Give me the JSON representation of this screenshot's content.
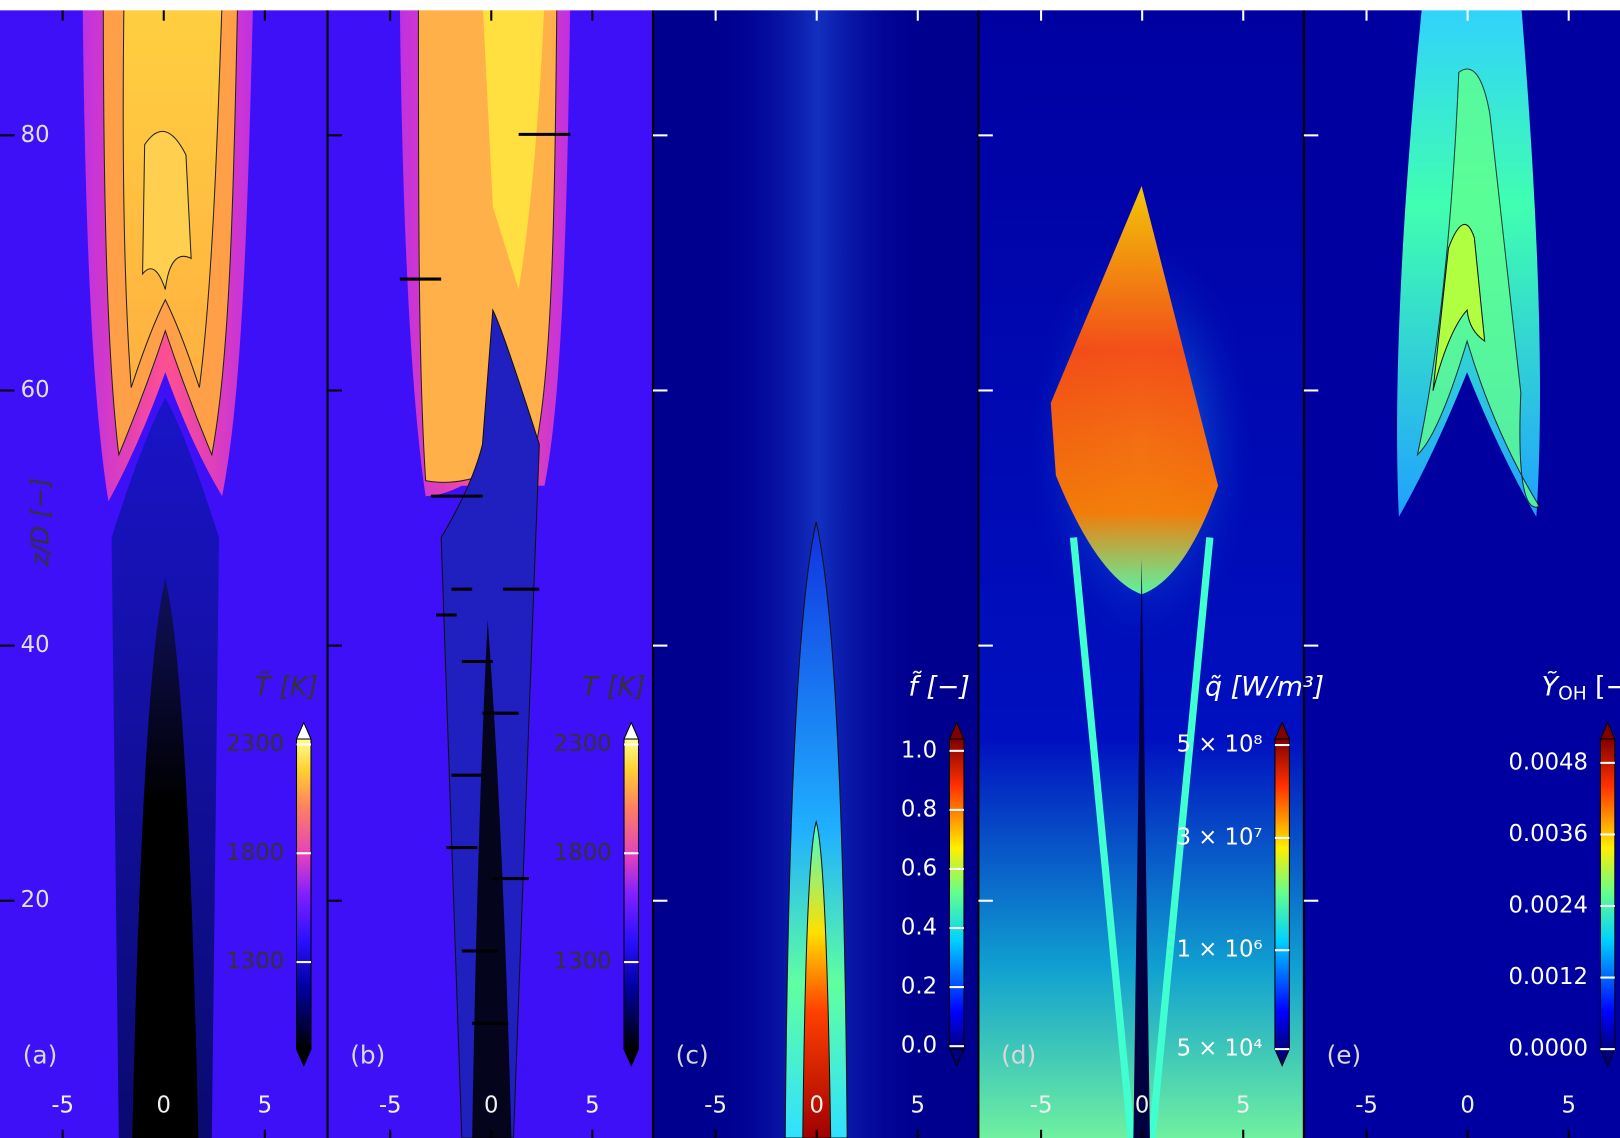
{
  "chart_data": [
    {
      "type": "field",
      "label": "(a)",
      "ylabel": "z/D [−]",
      "xlim": [
        -8.1,
        8.1
      ],
      "xticks": [
        -5,
        0,
        5
      ],
      "ylim": [
        1.4,
        89.8
      ],
      "yticks": [
        20,
        40,
        60,
        80
      ],
      "colorbar": {
        "title": "T̃ [K]",
        "colormap": "gnuplot2",
        "scale": "linear",
        "lim": [
          900,
          2325
        ],
        "ticks": [
          1300,
          1800,
          2300
        ]
      }
    },
    {
      "type": "field",
      "label": "(b)",
      "xlim": [
        -8.1,
        8.1
      ],
      "xticks": [
        -5,
        0,
        5
      ],
      "ylim": [
        1.4,
        89.8
      ],
      "yticks": [
        20,
        40,
        60,
        80
      ],
      "colorbar": {
        "title": "T [K]",
        "colormap": "gnuplot2",
        "scale": "linear",
        "lim": [
          900,
          2325
        ],
        "ticks": [
          1300,
          1800,
          2300
        ]
      }
    },
    {
      "type": "field",
      "label": "(c)",
      "xlim": [
        -8.1,
        8.1
      ],
      "xticks": [
        -5,
        0,
        5
      ],
      "ylim": [
        1.4,
        89.8
      ],
      "yticks": [
        20,
        40,
        60,
        80
      ],
      "colorbar": {
        "title": "f̃ [−]",
        "colormap": "jet",
        "scale": "linear",
        "lim": [
          -0.01,
          1.04
        ],
        "ticks": [
          {
            "value": 0,
            "label": "0.0"
          },
          0.2,
          0.4,
          0.6,
          0.8,
          {
            "value": 1,
            "label": "1.0"
          }
        ]
      }
    },
    {
      "type": "field",
      "label": "(d)",
      "xlim": [
        -8.1,
        8.1
      ],
      "xticks": [
        -5,
        0,
        5
      ],
      "ylim": [
        1.4,
        89.8
      ],
      "yticks": [
        20,
        40,
        60,
        80
      ],
      "colorbar": {
        "title": "q̃ [W/m³]",
        "colormap": "jet",
        "scale": "log",
        "lim": [
          50000,
          600000000
        ],
        "ticks": [
          {
            "value": 50000,
            "label": "5 × 10⁴"
          },
          {
            "value": 1000000,
            "label": "1 × 10⁶"
          },
          {
            "value": 30000000,
            "label": "3 × 10⁷"
          },
          {
            "value": 500000000,
            "label": "5 × 10⁸"
          }
        ]
      }
    },
    {
      "type": "field",
      "label": "(e)",
      "xlim": [
        -8.1,
        8.1
      ],
      "xticks": [
        -5,
        0,
        5
      ],
      "ylim": [
        1.4,
        89.8
      ],
      "yticks": [
        20,
        40,
        60,
        80
      ],
      "colorbar": {
        "title": "Ỹ",
        "title_sub": "OH",
        "title_unit": "[−]",
        "colormap": "jet",
        "scale": "linear",
        "lim": [
          0,
          0.0052
        ],
        "ticks": [
          {
            "value": 0,
            "label": "0.0000"
          },
          {
            "value": 0.0012,
            "label": "0.0012"
          },
          {
            "value": 0.0024,
            "label": "0.0024"
          },
          {
            "value": 0.0036,
            "label": "0.0036"
          },
          {
            "value": 0.0048,
            "label": "0.0048"
          }
        ]
      }
    }
  ]
}
